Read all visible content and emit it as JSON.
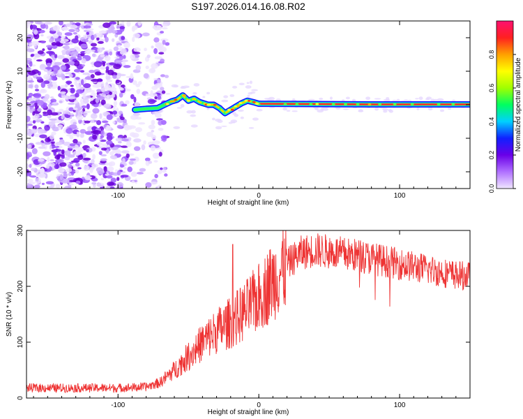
{
  "title": "S197.2026.014.16.08.R02",
  "chart_data": [
    {
      "type": "heatmap",
      "xlabel": "Height of straight line (km)",
      "ylabel": "Frequency (Hz)",
      "xlim": [
        -165,
        150
      ],
      "ylim": [
        -25,
        25
      ],
      "xticks": [
        -100,
        0,
        100
      ],
      "yticks": [
        -20,
        -10,
        0,
        10,
        20
      ],
      "colorbar": {
        "label": "Normalized spectral amplitude",
        "range": [
          0.0,
          1.0
        ],
        "ticks": [
          "0.0",
          "0.2",
          "0.4",
          "0.6",
          "0.8"
        ],
        "colors": [
          "#f0e6ff",
          "#b070ff",
          "#6a00e8",
          "#1020ff",
          "#00d0ff",
          "#00ff60",
          "#a0ff00",
          "#ffff00",
          "#ffa000",
          "#ff2020",
          "#ff1070"
        ]
      },
      "track": {
        "start_km": -88,
        "points": [
          [
            -88,
            -1.5
          ],
          [
            -80,
            -1.2
          ],
          [
            -72,
            -1.0
          ],
          [
            -66,
            0.2
          ],
          [
            -62,
            1.0
          ],
          [
            -58,
            1.5
          ],
          [
            -54,
            2.8
          ],
          [
            -50,
            1.2
          ],
          [
            -46,
            1.8
          ],
          [
            -42,
            0.8
          ],
          [
            -36,
            0.0
          ],
          [
            -32,
            0.0
          ],
          [
            -28,
            -1.0
          ],
          [
            -24,
            -2.5
          ],
          [
            -20,
            -1.5
          ],
          [
            -16,
            -0.5
          ],
          [
            -12,
            0.5
          ],
          [
            -8,
            1.2
          ],
          [
            -4,
            0.8
          ],
          [
            0,
            0.3
          ],
          [
            40,
            0.2
          ],
          [
            80,
            0.1
          ],
          [
            150,
            0.1
          ]
        ]
      }
    },
    {
      "type": "line",
      "xlabel": "Height of straight line (km)",
      "ylabel": "SNR (10 * v/v)",
      "xlim": [
        -165,
        150
      ],
      "ylim": [
        0,
        300
      ],
      "xticks": [
        -100,
        0,
        100
      ],
      "yticks": [
        0,
        100,
        200,
        300
      ],
      "color": "#ee3333",
      "envelope": {
        "x": [
          -165,
          -100,
          -80,
          -70,
          -60,
          -50,
          -40,
          -30,
          -20,
          -10,
          0,
          10,
          20,
          30,
          40,
          50,
          60,
          70,
          80,
          90,
          100,
          110,
          120,
          130,
          140,
          150
        ],
        "y": [
          18,
          18,
          20,
          28,
          50,
          75,
          100,
          120,
          135,
          155,
          180,
          210,
          240,
          260,
          265,
          262,
          258,
          255,
          250,
          245,
          240,
          235,
          230,
          225,
          220,
          218
        ]
      },
      "spike": {
        "x": -18.5,
        "y": 275
      }
    }
  ]
}
